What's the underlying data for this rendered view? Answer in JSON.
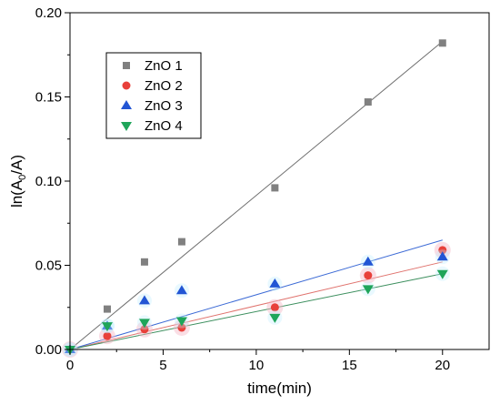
{
  "chart_data": {
    "type": "scatter",
    "xlabel": "time(min)",
    "ylabel_parts": [
      "ln(A",
      "0",
      "/A)"
    ],
    "xlim": [
      0,
      22.5
    ],
    "ylim": [
      0,
      0.2
    ],
    "x_ticks": [
      0,
      5,
      10,
      15,
      20
    ],
    "x_tick_labels": [
      "0",
      "5",
      "10",
      "15",
      "20"
    ],
    "y_ticks": [
      0.0,
      0.05,
      0.1,
      0.15,
      0.2
    ],
    "y_tick_labels": [
      "0.00",
      "0.05",
      "0.10",
      "0.15",
      "0.20"
    ],
    "legend_placement": "top-left",
    "grid": false,
    "series": [
      {
        "name": "ZnO 1",
        "marker": "square",
        "color": "#808080",
        "line_color": "#6e6e6e",
        "x": [
          0,
          2,
          4,
          6,
          11,
          16,
          20
        ],
        "y": [
          0.0,
          0.024,
          0.052,
          0.064,
          0.096,
          0.147,
          0.182
        ],
        "fit": {
          "x0": 0,
          "y0": 0.0,
          "x1": 20,
          "y1": 0.183
        }
      },
      {
        "name": "ZnO 2",
        "marker": "circle",
        "color": "#e8403a",
        "line_color": "#e0736e",
        "x": [
          0,
          2,
          4,
          6,
          11,
          16,
          20
        ],
        "y": [
          0.0,
          0.008,
          0.012,
          0.013,
          0.025,
          0.044,
          0.059
        ],
        "fit": {
          "x0": 0,
          "y0": 0.0,
          "x1": 20,
          "y1": 0.052
        }
      },
      {
        "name": "ZnO 3",
        "marker": "triangle-up",
        "color": "#2255d4",
        "line_color": "#3d6bd6",
        "x": [
          0,
          2,
          4,
          6,
          11,
          16,
          20
        ],
        "y": [
          0.0,
          0.014,
          0.029,
          0.035,
          0.039,
          0.052,
          0.055
        ],
        "fit": {
          "x0": 0,
          "y0": 0.0,
          "x1": 20,
          "y1": 0.065
        }
      },
      {
        "name": "ZnO 4",
        "marker": "triangle-down",
        "color": "#1fa55a",
        "line_color": "#3c8f5e",
        "x": [
          0,
          2,
          4,
          6,
          11,
          16,
          20
        ],
        "y": [
          0.0,
          0.014,
          0.016,
          0.017,
          0.019,
          0.036,
          0.045
        ],
        "fit": {
          "x0": 0,
          "y0": 0.0,
          "x1": 20,
          "y1": 0.045
        }
      }
    ]
  }
}
